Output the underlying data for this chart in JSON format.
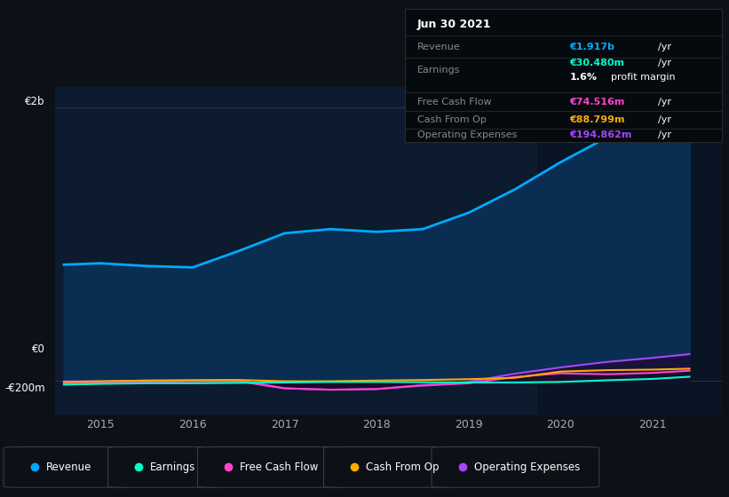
{
  "background_color": "#0d1117",
  "plot_bg_color": "#0d1b2e",
  "years": [
    2014.6,
    2015.0,
    2015.5,
    2016.0,
    2016.5,
    2017.0,
    2017.5,
    2018.0,
    2018.5,
    2019.0,
    2019.5,
    2020.0,
    2020.5,
    2021.0,
    2021.4
  ],
  "revenue": [
    850,
    860,
    840,
    830,
    950,
    1080,
    1110,
    1090,
    1110,
    1230,
    1400,
    1600,
    1780,
    1920,
    1917
  ],
  "earnings": [
    -28,
    -22,
    -18,
    -18,
    -15,
    -12,
    -8,
    -8,
    -10,
    -12,
    -12,
    -8,
    4,
    14,
    30
  ],
  "free_cf": [
    -18,
    -12,
    -8,
    -4,
    -4,
    -55,
    -65,
    -60,
    -35,
    -18,
    28,
    55,
    48,
    58,
    74
  ],
  "cash_from_op": [
    -8,
    -3,
    2,
    5,
    6,
    -3,
    -3,
    2,
    6,
    12,
    22,
    68,
    78,
    82,
    89
  ],
  "op_expenses": [
    -4,
    -4,
    2,
    2,
    6,
    -55,
    -65,
    -60,
    -30,
    -8,
    52,
    98,
    138,
    168,
    195
  ],
  "revenue_color": "#00aaff",
  "earnings_color": "#00ffcc",
  "free_cf_color": "#ff44cc",
  "cash_from_op_color": "#ffaa00",
  "op_expenses_color": "#aa44ff",
  "ylim_min": -250,
  "ylim_max": 2150,
  "xlim_min": 2014.5,
  "xlim_max": 2021.75,
  "x_ticks": [
    2015,
    2016,
    2017,
    2018,
    2019,
    2020,
    2021
  ],
  "grid_color": "#263d5a",
  "legend_labels": [
    "Revenue",
    "Earnings",
    "Free Cash Flow",
    "Cash From Op",
    "Operating Expenses"
  ],
  "legend_colors": [
    "#00aaff",
    "#00ffcc",
    "#ff44cc",
    "#ffaa00",
    "#aa44ff"
  ],
  "tooltip_title": "Jun 30 2021",
  "tooltip_rows": [
    {
      "label": "Revenue",
      "value": "€1.917b",
      "unit": "/yr",
      "color": "#00aaff",
      "sub": null
    },
    {
      "label": "Earnings",
      "value": "€30.480m",
      "unit": "/yr",
      "color": "#00ffcc",
      "sub": "1.6% profit margin"
    },
    {
      "label": "Free Cash Flow",
      "value": "€74.516m",
      "unit": "/yr",
      "color": "#ff44cc",
      "sub": null
    },
    {
      "label": "Cash From Op",
      "value": "€88.799m",
      "unit": "/yr",
      "color": "#ffaa00",
      "sub": null
    },
    {
      "label": "Operating Expenses",
      "value": "€194.862m",
      "unit": "/yr",
      "color": "#aa44ff",
      "sub": null
    }
  ]
}
